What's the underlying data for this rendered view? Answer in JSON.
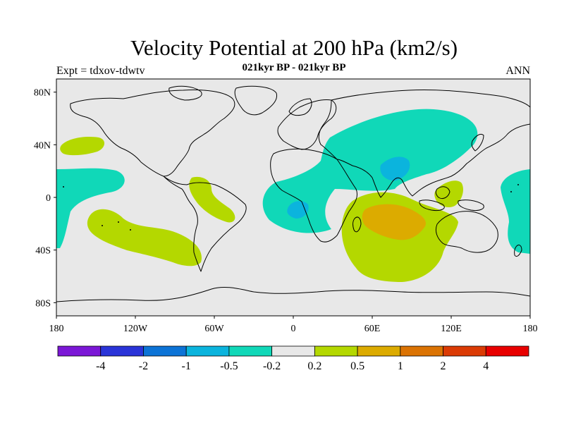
{
  "title": "Velocity Potential at 200 hPa (km2/s)",
  "subtitle": "021kyr BP - 021kyr BP",
  "experiment_label": "Expt = tdxov-tdwtv",
  "season_label": "ANN",
  "map": {
    "projection": "cylindrical-equidistant",
    "lon_range": [
      -180,
      180
    ],
    "lat_range": [
      -90,
      90
    ],
    "lat_ticks": [
      {
        "value": 80,
        "label": "80N"
      },
      {
        "value": 40,
        "label": "40N"
      },
      {
        "value": 0,
        "label": "0"
      },
      {
        "value": -40,
        "label": "40S"
      },
      {
        "value": -80,
        "label": "80S"
      }
    ],
    "lon_ticks": [
      {
        "value": -180,
        "label": "180"
      },
      {
        "value": -120,
        "label": "120W"
      },
      {
        "value": -60,
        "label": "60W"
      },
      {
        "value": 0,
        "label": "0"
      },
      {
        "value": 60,
        "label": "60E"
      },
      {
        "value": 120,
        "label": "120E"
      },
      {
        "value": 180,
        "label": "180"
      }
    ],
    "background_color": "#e8e8e8"
  },
  "colorbar": {
    "colors": [
      "#7b17d6",
      "#2a34d8",
      "#0c73d6",
      "#0bb4dd",
      "#10d8b8",
      "#e8e8e8",
      "#b4d800",
      "#dcab00",
      "#db7303",
      "#db3b05",
      "#e80000"
    ],
    "labels": [
      "-4",
      "-2",
      "-1",
      "-0.5",
      "-0.2",
      "0.2",
      "0.5",
      "1",
      "2",
      "4"
    ]
  }
}
